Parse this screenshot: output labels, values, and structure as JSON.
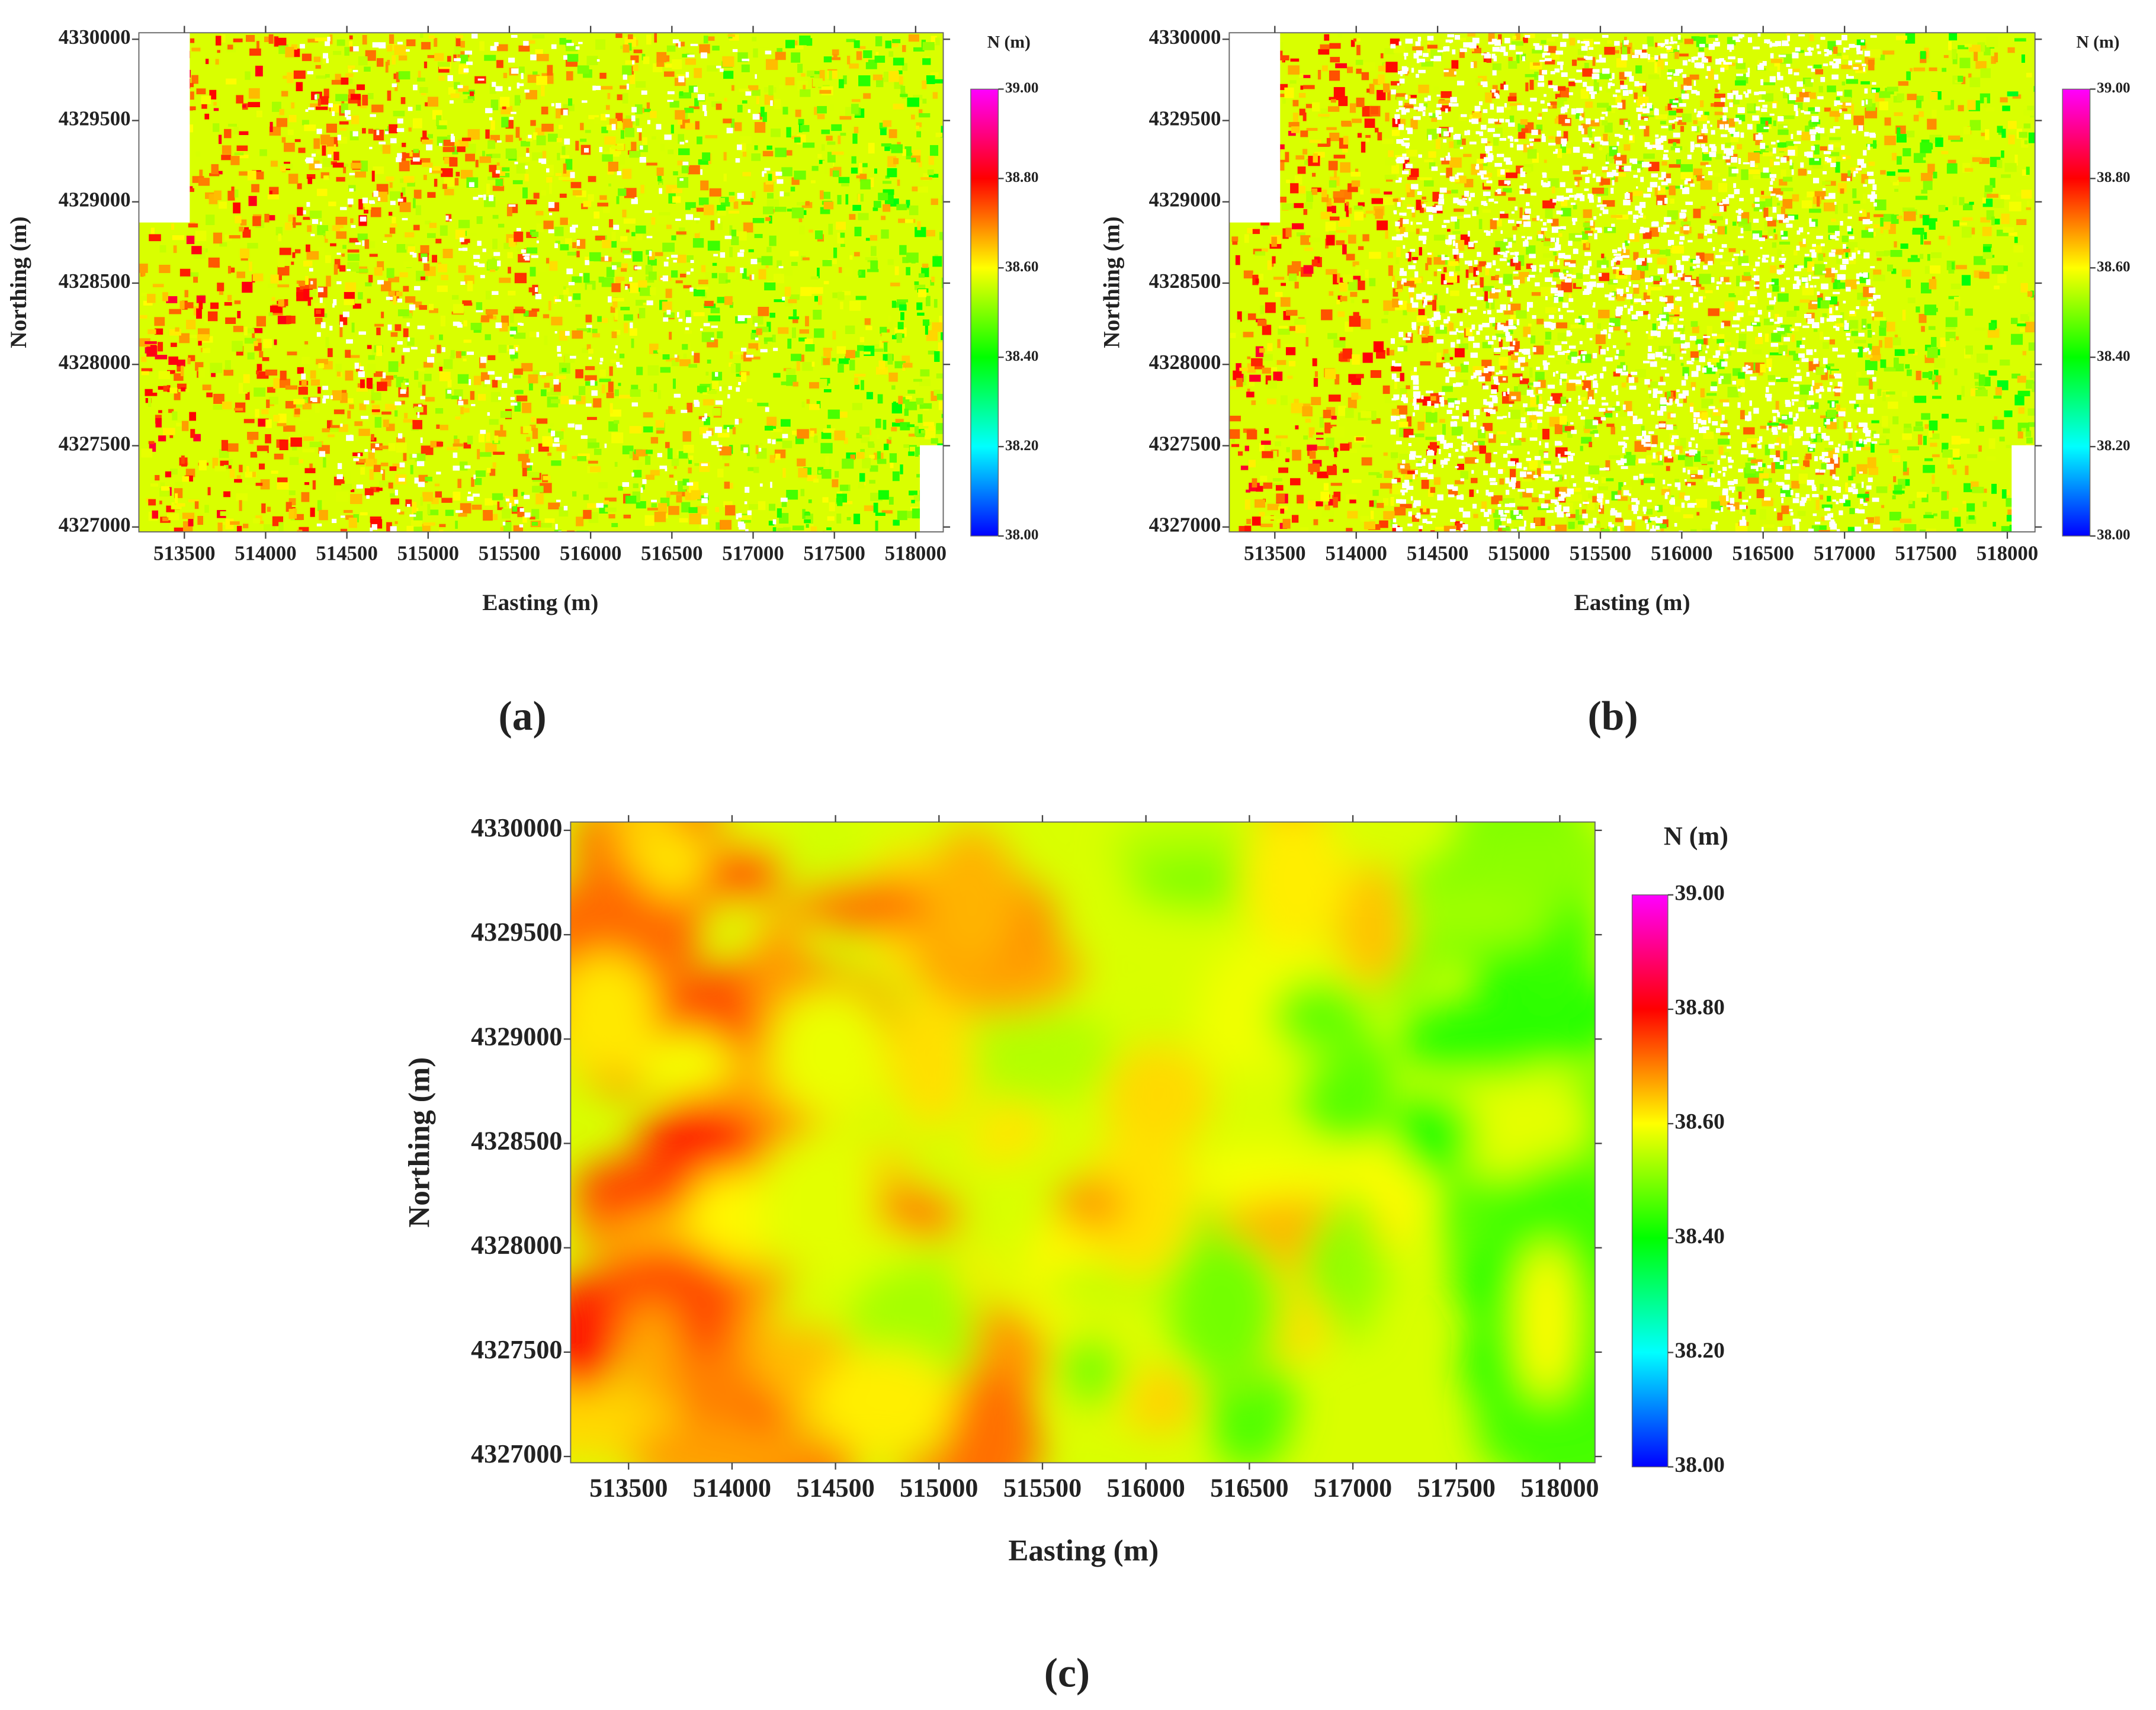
{
  "chart_data": [
    {
      "type": "heatmap",
      "panel_label": "(a)",
      "xlabel": "Easting (m)",
      "ylabel": "Northing (m)",
      "xlim": [
        513220,
        518170
      ],
      "ylim": [
        4326970,
        4330040
      ],
      "xticks": [
        513500,
        514000,
        514500,
        515000,
        515500,
        516000,
        516500,
        517000,
        517500,
        518000
      ],
      "yticks": [
        4327000,
        4327500,
        4328000,
        4328500,
        4329000,
        4329500,
        4330000
      ],
      "colorbar": {
        "label": "N (m)",
        "lim": [
          38,
          39
        ],
        "colors": [
          "#0000ff",
          "#00ffff",
          "#00ff00",
          "#ffff00",
          "#ff0000",
          "#ff00ff"
        ],
        "ticks": [
          {
            "value": 38,
            "label": "38.00"
          },
          {
            "value": 38.2,
            "label": "38.20"
          },
          {
            "value": 38.4,
            "label": "38.40"
          },
          {
            "value": 38.6,
            "label": "38.60"
          },
          {
            "value": 38.8,
            "label": "38.80"
          },
          {
            "value": 39,
            "label": "39.00"
          }
        ]
      }
    },
    {
      "type": "heatmap",
      "panel_label": "(b)",
      "xlabel": "Easting (m)",
      "ylabel": "Northing (m)",
      "xlim": [
        513220,
        518170
      ],
      "ylim": [
        4326970,
        4330040
      ],
      "xticks": [
        513500,
        514000,
        514500,
        515000,
        515500,
        516000,
        516500,
        517000,
        517500,
        518000
      ],
      "yticks": [
        4327000,
        4327500,
        4328000,
        4328500,
        4329000,
        4329500,
        4330000
      ],
      "colorbar": {
        "label": "N (m)",
        "lim": [
          38,
          39
        ],
        "colors": [
          "#0000ff",
          "#00ffff",
          "#00ff00",
          "#ffff00",
          "#ff0000",
          "#ff00ff"
        ],
        "ticks": [
          {
            "value": 38,
            "label": "38.00"
          },
          {
            "value": 38.2,
            "label": "38.20"
          },
          {
            "value": 38.4,
            "label": "38.40"
          },
          {
            "value": 38.6,
            "label": "38.60"
          },
          {
            "value": 38.8,
            "label": "38.80"
          },
          {
            "value": 39,
            "label": "39.00"
          }
        ]
      }
    },
    {
      "type": "heatmap",
      "panel_label": "(c)",
      "xlabel": "Easting (m)",
      "ylabel": "Northing (m)",
      "xlim": [
        513220,
        518170
      ],
      "ylim": [
        4326970,
        4330040
      ],
      "xticks": [
        513500,
        514000,
        514500,
        515000,
        515500,
        516000,
        516500,
        517000,
        517500,
        518000
      ],
      "yticks": [
        4327000,
        4327500,
        4328000,
        4328500,
        4329000,
        4329500,
        4330000
      ],
      "colorbar": {
        "label": "N (m)",
        "lim": [
          38,
          39
        ],
        "colors": [
          "#0000ff",
          "#00ffff",
          "#00ff00",
          "#ffff00",
          "#ff0000",
          "#ff00ff"
        ],
        "ticks": [
          {
            "value": 38,
            "label": "38.00"
          },
          {
            "value": 38.2,
            "label": "38.20"
          },
          {
            "value": 38.4,
            "label": "38.40"
          },
          {
            "value": 38.6,
            "label": "38.60"
          },
          {
            "value": 38.8,
            "label": "38.80"
          },
          {
            "value": 39,
            "label": "39.00"
          }
        ]
      }
    }
  ]
}
